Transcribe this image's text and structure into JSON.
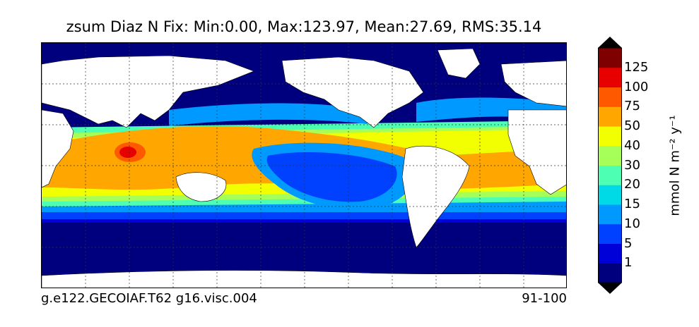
{
  "figure": {
    "title": "zsum Diaz N Fix: Min:0.00, Max:123.97, Mean:27.69, RMS:35.14",
    "footer_left": "g.e122.GECOIAF.T62 g16.visc.004",
    "footer_right": "91-100"
  },
  "colorbar": {
    "label": "mmol N m⁻² y⁻¹",
    "levels": [
      "1",
      "5",
      "10",
      "15",
      "20",
      "30",
      "40",
      "50",
      "75",
      "100",
      "125"
    ],
    "colors": [
      "#00007f",
      "#0000d9",
      "#0040ff",
      "#0099ff",
      "#00d9e6",
      "#4dffb3",
      "#a6ff59",
      "#f2ff00",
      "#ffa600",
      "#ff5900",
      "#e60000",
      "#7f0000"
    ],
    "extend": "both"
  },
  "map": {
    "projection": "equirectangular",
    "gridlines": "dashed",
    "ocean_color_south": "#00007f",
    "land_color": "#ffffff"
  }
}
